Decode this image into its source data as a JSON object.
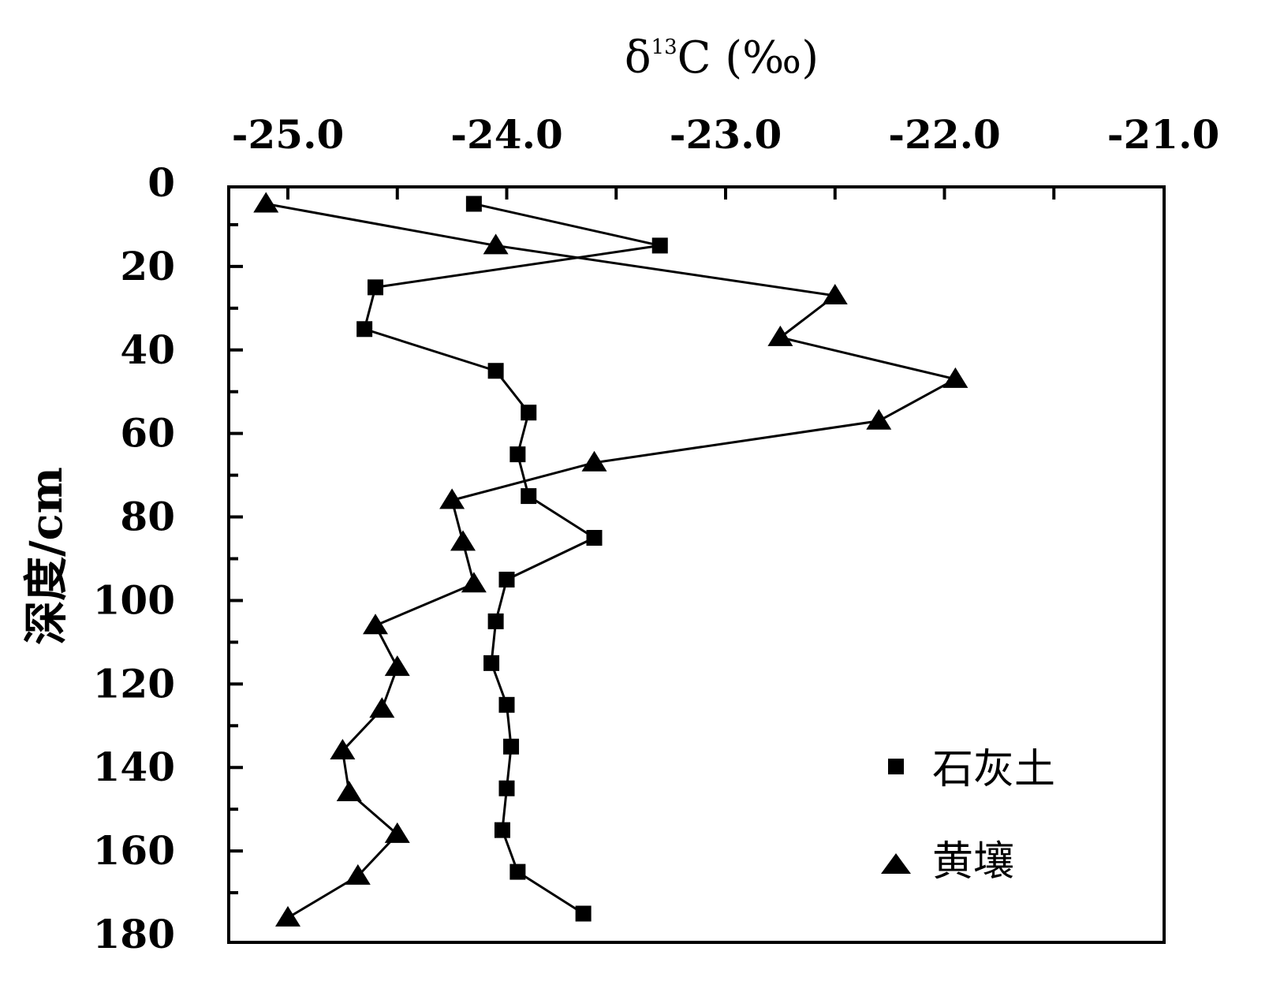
{
  "chart_data": {
    "type": "scatter",
    "title": "",
    "xlabel": "δ13C (‰)",
    "xlabel_parts": {
      "delta": "δ",
      "superscript": "13",
      "rest": "C (‰)"
    },
    "ylabel": "深度/cm",
    "x_axis_position": "top",
    "y_axis_inverted": true,
    "xlim": [
      -25.0,
      -21.0
    ],
    "ylim": [
      0,
      180
    ],
    "x_ticks": [
      "-25.0",
      "-24.0",
      "-23.0",
      "-22.0",
      "-21.0"
    ],
    "x_tick_values": [
      -25.0,
      -24.0,
      -23.0,
      -22.0,
      -21.0
    ],
    "y_ticks": [
      "0",
      "20",
      "40",
      "60",
      "80",
      "100",
      "120",
      "140",
      "160",
      "180"
    ],
    "y_tick_values": [
      0,
      20,
      40,
      60,
      80,
      100,
      120,
      140,
      160,
      180
    ],
    "grid": false,
    "legend_position": "bottom-right",
    "series": [
      {
        "name": "石灰土",
        "marker": "square",
        "color": "#000000",
        "points": [
          {
            "x": -24.15,
            "y": 5
          },
          {
            "x": -23.3,
            "y": 15
          },
          {
            "x": -24.6,
            "y": 25
          },
          {
            "x": -24.65,
            "y": 35
          },
          {
            "x": -24.05,
            "y": 45
          },
          {
            "x": -23.9,
            "y": 55
          },
          {
            "x": -23.95,
            "y": 65
          },
          {
            "x": -23.9,
            "y": 75
          },
          {
            "x": -23.6,
            "y": 85
          },
          {
            "x": -24.0,
            "y": 95
          },
          {
            "x": -24.05,
            "y": 105
          },
          {
            "x": -24.07,
            "y": 115
          },
          {
            "x": -24.0,
            "y": 125
          },
          {
            "x": -23.98,
            "y": 135
          },
          {
            "x": -24.0,
            "y": 145
          },
          {
            "x": -24.02,
            "y": 155
          },
          {
            "x": -23.95,
            "y": 165
          },
          {
            "x": -23.65,
            "y": 175
          }
        ]
      },
      {
        "name": "黄壤",
        "marker": "triangle",
        "color": "#000000",
        "points": [
          {
            "x": -25.1,
            "y": 5
          },
          {
            "x": -24.05,
            "y": 15
          },
          {
            "x": -22.5,
            "y": 27
          },
          {
            "x": -22.75,
            "y": 37
          },
          {
            "x": -21.95,
            "y": 47
          },
          {
            "x": -22.3,
            "y": 57
          },
          {
            "x": -23.6,
            "y": 67
          },
          {
            "x": -24.25,
            "y": 76
          },
          {
            "x": -24.2,
            "y": 86
          },
          {
            "x": -24.15,
            "y": 96
          },
          {
            "x": -24.6,
            "y": 106
          },
          {
            "x": -24.5,
            "y": 116
          },
          {
            "x": -24.57,
            "y": 126
          },
          {
            "x": -24.75,
            "y": 136
          },
          {
            "x": -24.72,
            "y": 146
          },
          {
            "x": -24.5,
            "y": 156
          },
          {
            "x": -24.68,
            "y": 166
          },
          {
            "x": -25.0,
            "y": 176
          }
        ]
      }
    ]
  }
}
